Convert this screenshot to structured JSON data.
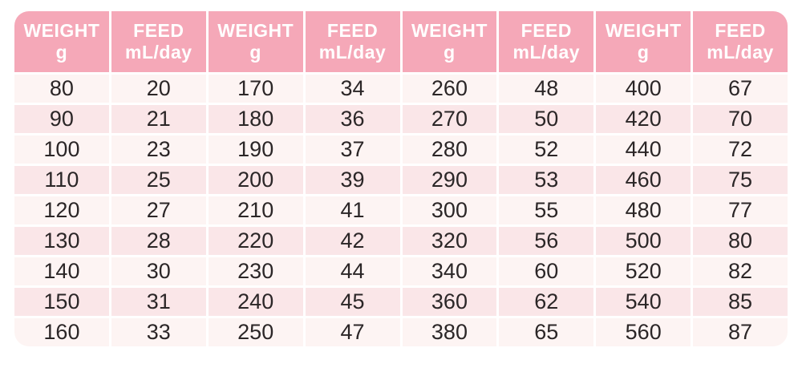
{
  "colors": {
    "header_bg": "#f5a8b8",
    "header_text": "#ffffff",
    "row_odd_bg": "#fdf4f3",
    "row_even_bg": "#fae6e8",
    "cell_text": "#2b2627",
    "gap": "#ffffff"
  },
  "chart_data": {
    "type": "table",
    "columns": [
      {
        "title": "WEIGHT",
        "unit": "g"
      },
      {
        "title": "FEED",
        "unit": "mL/day"
      },
      {
        "title": "WEIGHT",
        "unit": "g"
      },
      {
        "title": "FEED",
        "unit": "mL/day"
      },
      {
        "title": "WEIGHT",
        "unit": "g"
      },
      {
        "title": "FEED",
        "unit": "mL/day"
      },
      {
        "title": "WEIGHT",
        "unit": "g"
      },
      {
        "title": "FEED",
        "unit": "mL/day"
      }
    ],
    "rows": [
      [
        80,
        20,
        170,
        34,
        260,
        48,
        400,
        67
      ],
      [
        90,
        21,
        180,
        36,
        270,
        50,
        420,
        70
      ],
      [
        100,
        23,
        190,
        37,
        280,
        52,
        440,
        72
      ],
      [
        110,
        25,
        200,
        39,
        290,
        53,
        460,
        75
      ],
      [
        120,
        27,
        210,
        41,
        300,
        55,
        480,
        77
      ],
      [
        130,
        28,
        220,
        42,
        320,
        56,
        500,
        80
      ],
      [
        140,
        30,
        230,
        44,
        340,
        60,
        520,
        82
      ],
      [
        150,
        31,
        240,
        45,
        360,
        62,
        540,
        85
      ],
      [
        160,
        33,
        250,
        47,
        380,
        65,
        560,
        87
      ]
    ]
  }
}
